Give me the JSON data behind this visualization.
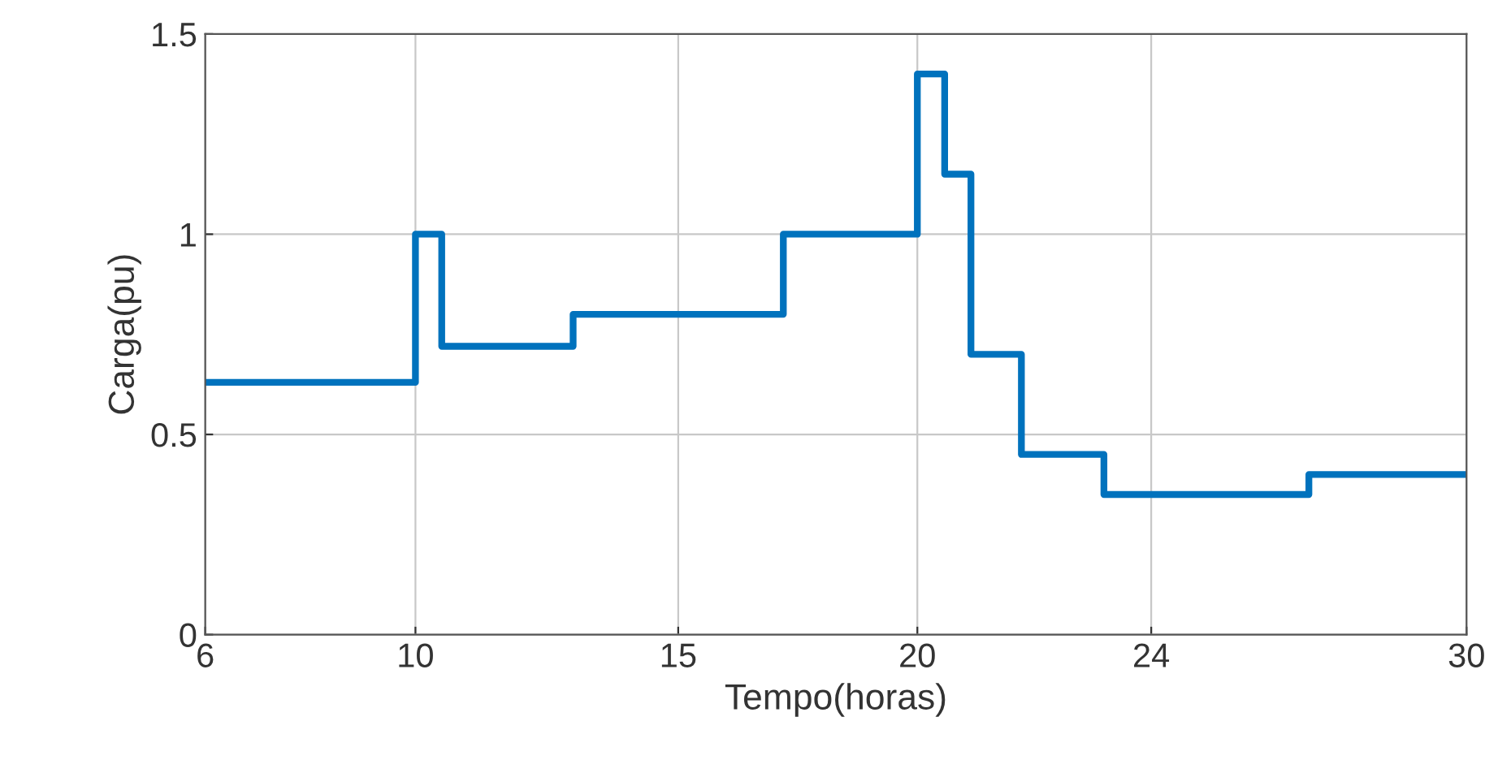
{
  "chart_data": {
    "type": "step",
    "xlabel": "Tempo(horas)",
    "ylabel": "Carga(pu)",
    "x": [
      6,
      10,
      10.5,
      13,
      17,
      19.55,
      20.07,
      20.57,
      21.53,
      23.1,
      27,
      30
    ],
    "series": [
      {
        "color": "#0072bd",
        "values": [
          0.63,
          1.0,
          0.72,
          0.8,
          1.0,
          1.4,
          1.15,
          0.7,
          0.45,
          0.35,
          0.4,
          0.4
        ]
      }
    ],
    "xlim": [
      6,
      30
    ],
    "xticks": [
      6,
      10,
      15,
      {
        "value": 19.55,
        "label": "20"
      },
      24,
      30
    ],
    "ylim": [
      0,
      1.5
    ],
    "yticks": [
      0,
      0.5,
      1,
      1.5
    ],
    "grid": true
  }
}
